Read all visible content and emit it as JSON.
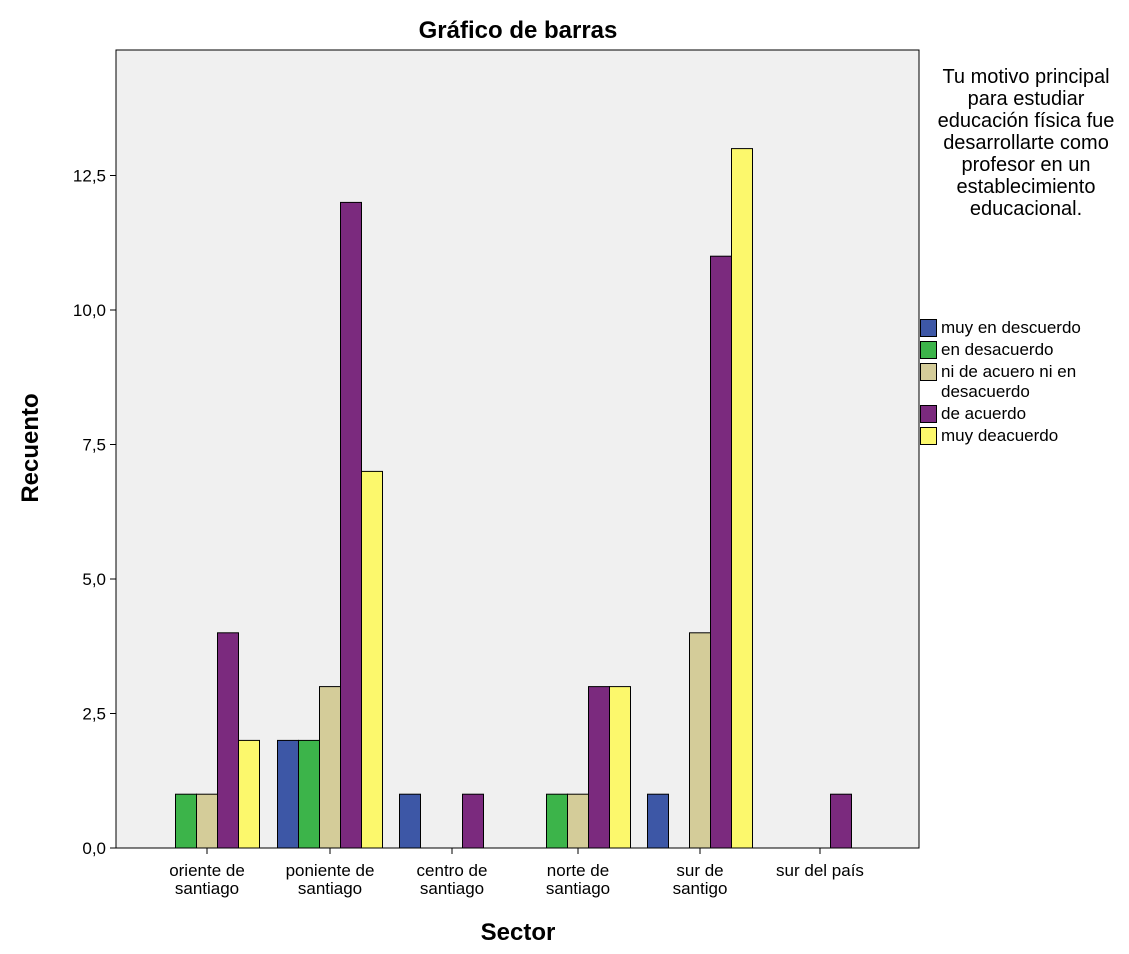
{
  "chart_data": {
    "type": "bar",
    "title": "Gráfico de barras",
    "xlabel": "Sector",
    "ylabel": "Recuento",
    "ylim": [
      0,
      15
    ],
    "yticks": [
      "0,0",
      "2,5",
      "5,0",
      "7,5",
      "10,0",
      "12,5"
    ],
    "ytick_values": [
      0,
      2.5,
      5,
      7.5,
      10,
      12.5
    ],
    "categories": [
      [
        "oriente de",
        "santiago"
      ],
      [
        "poniente de",
        "santiago"
      ],
      [
        "centro de",
        "santiago"
      ],
      [
        "norte de",
        "santiago"
      ],
      [
        "sur de",
        "santigo"
      ],
      [
        "sur del país"
      ]
    ],
    "legend_title": "Tu motivo principal para estudiar educación física fue desarrollarte como profesor en un establecimiento educacional.",
    "legend_position": "right",
    "grid": false,
    "series": [
      {
        "name": "muy en descuerdo",
        "color": "#3d57a6",
        "values": [
          0,
          2,
          1,
          0,
          1,
          0
        ]
      },
      {
        "name": "en desacuerdo",
        "color": "#3cb44a",
        "values": [
          1,
          2,
          0,
          1,
          0,
          0
        ]
      },
      {
        "name": "ni de acuero ni en desacuerdo",
        "color": "#d4cc99",
        "values": [
          1,
          3,
          0,
          1,
          4,
          0
        ]
      },
      {
        "name": "de acuerdo",
        "color": "#7b2a7e",
        "values": [
          4,
          12,
          1,
          3,
          11,
          1
        ]
      },
      {
        "name": "muy deacuerdo",
        "color": "#fcf86c",
        "values": [
          2,
          7,
          0,
          3,
          13,
          0
        ]
      }
    ]
  }
}
